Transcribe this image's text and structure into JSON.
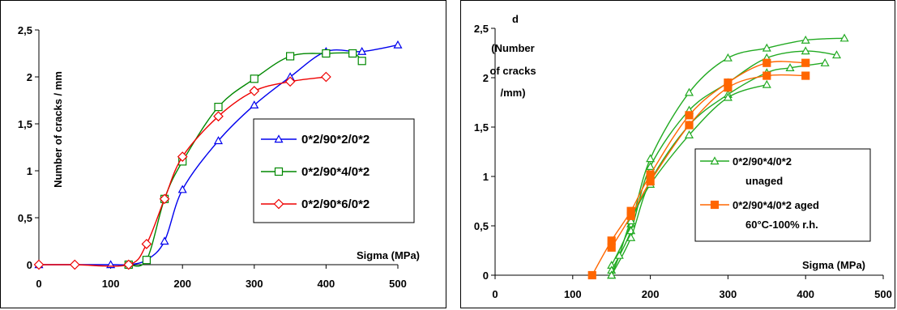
{
  "chart_data": [
    {
      "type": "line",
      "title": "",
      "xlabel": "Sigma (MPa)",
      "ylabel": "Number of cracks / mm",
      "xlim": [
        0,
        500
      ],
      "ylim": [
        0,
        2.5
      ],
      "xticks": [
        "0",
        "100",
        "200",
        "300",
        "400",
        "500"
      ],
      "yticks": [
        "0",
        "0,5",
        "1",
        "1,5",
        "2",
        "2,5"
      ],
      "grid": false,
      "legend_position": "right-center",
      "series": [
        {
          "name": "0*2/90*2/0*2",
          "color": "#0000ee",
          "marker": "triangle",
          "x": [
            0,
            100,
            125,
            150,
            175,
            200,
            250,
            300,
            350,
            400,
            450,
            500
          ],
          "y": [
            0,
            0,
            0,
            0.05,
            0.25,
            0.8,
            1.32,
            1.7,
            2.0,
            2.27,
            2.27,
            2.34
          ]
        },
        {
          "name": "0*2/90*4/0*2",
          "color": "#008800",
          "marker": "square",
          "x": [
            125,
            150,
            175,
            200,
            250,
            300,
            350,
            400,
            437,
            450
          ],
          "y": [
            0,
            0.05,
            0.7,
            1.1,
            1.68,
            1.98,
            2.22,
            2.25,
            2.25,
            2.17
          ]
        },
        {
          "name": "0*2/90*6/0*2",
          "color": "#ee0000",
          "marker": "diamond",
          "x": [
            0,
            50,
            125,
            150,
            175,
            200,
            250,
            300,
            350,
            400
          ],
          "y": [
            0,
            0,
            0,
            0.22,
            0.7,
            1.15,
            1.58,
            1.85,
            1.95,
            2.0
          ]
        }
      ]
    },
    {
      "type": "line",
      "title": "",
      "xlabel": "Sigma (MPa)",
      "ylabel": "d (Number of cracks /mm)",
      "xlim": [
        0,
        500
      ],
      "ylim": [
        0,
        2.5
      ],
      "xticks": [
        "0",
        "100",
        "200",
        "300",
        "400",
        "500"
      ],
      "yticks": [
        "0",
        "0,5",
        "1",
        "1,5",
        "2",
        "2,5"
      ],
      "grid": false,
      "legend_position": "right-center",
      "legend": [
        {
          "label_line1": "0*2/90*4/0*2",
          "label_line2": "unaged",
          "color": "#22aa22",
          "marker": "triangle"
        },
        {
          "label_line1": "0*2/90*4/0*2 aged",
          "label_line2": "60°C-100% r.h.",
          "color": "#ff6600",
          "marker": "square"
        }
      ],
      "series": [
        {
          "color": "#22aa22",
          "marker": "triangle",
          "x": [
            150,
            175,
            200,
            250,
            300,
            350,
            400,
            450
          ],
          "y": [
            0.1,
            0.52,
            1.18,
            1.85,
            2.2,
            2.3,
            2.38,
            2.4
          ]
        },
        {
          "color": "#22aa22",
          "marker": "triangle",
          "x": [
            150,
            175,
            200,
            250,
            300,
            350,
            400,
            440
          ],
          "y": [
            0.05,
            0.45,
            1.1,
            1.67,
            1.95,
            2.2,
            2.27,
            2.23
          ]
        },
        {
          "color": "#22aa22",
          "marker": "triangle",
          "x": [
            150,
            175,
            200,
            250,
            300,
            350,
            380,
            425
          ],
          "y": [
            0.0,
            0.38,
            0.95,
            1.52,
            1.83,
            2.05,
            2.1,
            2.15
          ]
        },
        {
          "color": "#22aa22",
          "marker": "triangle",
          "x": [
            150,
            160,
            175,
            200,
            250,
            300,
            350
          ],
          "y": [
            0.0,
            0.2,
            0.55,
            0.92,
            1.42,
            1.8,
            1.93
          ]
        },
        {
          "color": "#ff6600",
          "marker": "square",
          "x": [
            125,
            150,
            175,
            200,
            250,
            300,
            350,
            400
          ],
          "y": [
            0.0,
            0.35,
            0.65,
            1.02,
            1.62,
            1.95,
            2.15,
            2.15
          ]
        },
        {
          "color": "#ff6600",
          "marker": "square",
          "x": [
            150,
            175,
            200,
            250,
            300,
            350,
            400
          ],
          "y": [
            0.28,
            0.6,
            0.95,
            1.52,
            1.9,
            2.02,
            2.02
          ]
        }
      ]
    }
  ]
}
